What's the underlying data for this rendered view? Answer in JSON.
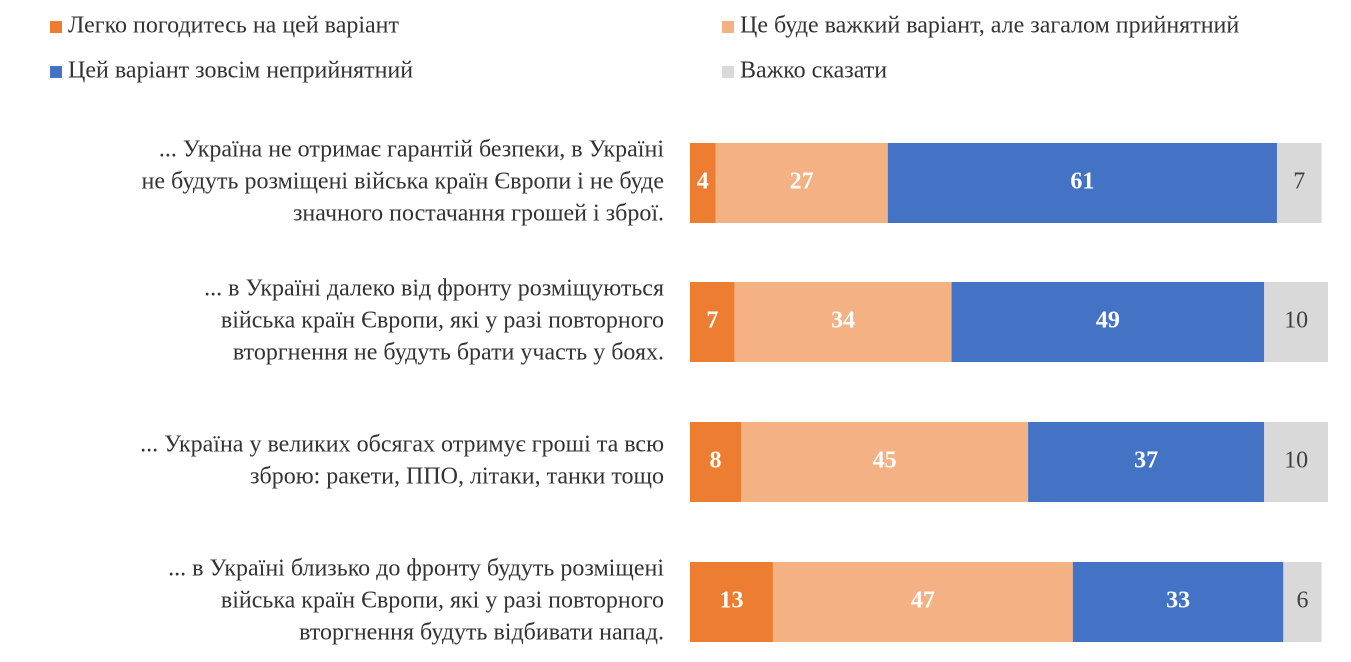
{
  "chart_data": {
    "type": "stacked-barh",
    "categories": [
      [
        "... Україна не отримає гарантій безпеки, в Україні",
        "не будуть розміщені війська країн Європи і не буде",
        "значного постачання грошей і зброї."
      ],
      [
        "... в Україні далеко від фронту розміщуються",
        "війська країн Європи, які у разі повторного",
        "вторгнення не будуть брати участь у боях."
      ],
      [
        "... Україна у великих обсягах отримує гроші та всю",
        "зброю: ракети, ППО, літаки, танки тощо"
      ],
      [
        "... в Україні близько до фронту будуть розміщені",
        "війська країн Європи, які у разі повторного",
        "вторгнення будуть відбивати напад."
      ]
    ],
    "series": [
      {
        "name": "Легко погодитесь на цей варіант",
        "color": "#ED7D31",
        "label_color": "#ffffff",
        "values": [
          4,
          7,
          8,
          13
        ]
      },
      {
        "name": "Це буде важкий варіант, але загалом прийнятний",
        "color": "#F4B183",
        "label_color": "#ffffff",
        "values": [
          27,
          34,
          45,
          47
        ]
      },
      {
        "name": "Цей варіант зовсім неприйнятний",
        "color": "#4472C4",
        "label_color": "#ffffff",
        "values": [
          61,
          49,
          37,
          33
        ]
      },
      {
        "name": "Важко сказати",
        "color": "#D9D9D9",
        "label_color": "#404040",
        "values": [
          7,
          10,
          10,
          6
        ]
      }
    ],
    "xlim": [
      0,
      100
    ]
  }
}
